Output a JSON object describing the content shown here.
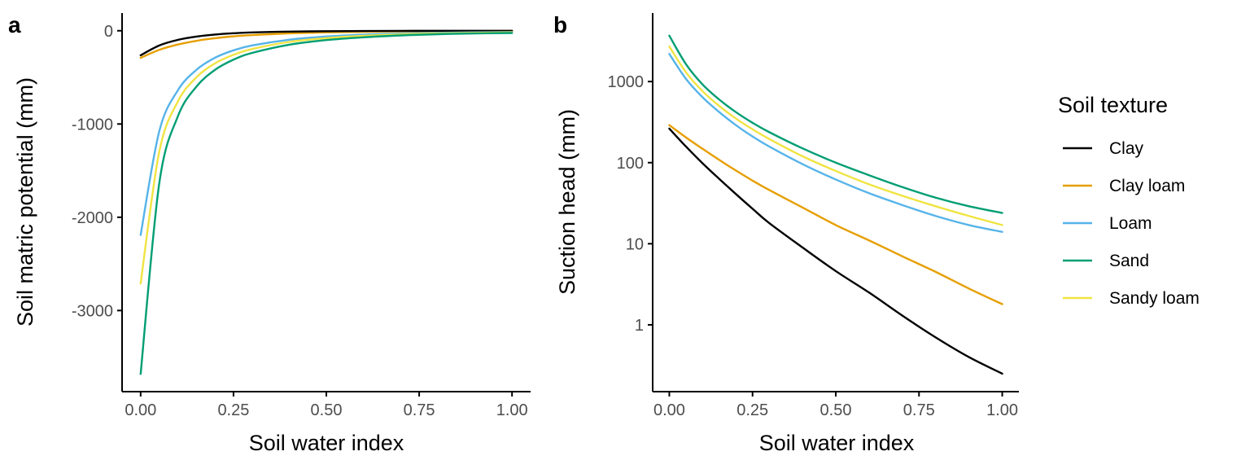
{
  "chart_data": [
    {
      "panel": "a",
      "type": "line",
      "xlabel": "Soil water index",
      "ylabel": "Soil matric potential (mm)",
      "xlim": [
        -0.05,
        1.05
      ],
      "ylim": [
        -3870,
        190
      ],
      "x_ticks": [
        0,
        0.25,
        0.5,
        0.75,
        1
      ],
      "x_tick_labels": [
        "0.00",
        "0.25",
        "0.50",
        "0.75",
        "1.00"
      ],
      "y_ticks": [
        0,
        -1000,
        -2000,
        -3000
      ],
      "y_tick_labels": [
        "0",
        "-1000",
        "-2000",
        "-3000"
      ],
      "x": [
        0,
        0.05,
        0.1,
        0.15,
        0.2,
        0.25,
        0.3,
        0.4,
        0.5,
        0.6,
        0.7,
        0.8,
        0.9,
        1.0
      ],
      "series": [
        {
          "name": "Clay",
          "color": "#000000",
          "values": [
            -263,
            -158,
            -98,
            -63,
            -41,
            -27,
            -18,
            -9,
            -4.6,
            -2.5,
            -1.3,
            -0.7,
            -0.4,
            -0.2
          ]
        },
        {
          "name": "Clay loam",
          "color": "#E69F00",
          "values": [
            -290,
            -205,
            -148,
            -108,
            -80,
            -60,
            -46,
            -28,
            -17,
            -11,
            -7,
            -4.5,
            -2.8,
            -1.8
          ]
        },
        {
          "name": "Loam",
          "color": "#56B4E9",
          "values": [
            -2190,
            -1080,
            -640,
            -420,
            -290,
            -210,
            -158,
            -96,
            -62,
            -42,
            -30,
            -22,
            -17,
            -14
          ]
        },
        {
          "name": "Sand",
          "color": "#009E73",
          "values": [
            -3680,
            -1640,
            -920,
            -600,
            -420,
            -310,
            -238,
            -150,
            -100,
            -70,
            -50,
            -37,
            -29,
            -24
          ]
        },
        {
          "name": "Sandy loam",
          "color": "#F0E442",
          "values": [
            -2710,
            -1300,
            -760,
            -500,
            -350,
            -258,
            -196,
            -120,
            -79,
            -54,
            -39,
            -29,
            -22,
            -17
          ]
        }
      ]
    },
    {
      "panel": "b",
      "type": "line",
      "xlabel": "Soil water index",
      "ylabel": "Suction head (mm)",
      "y_scale": "log10",
      "xlim": [
        -0.05,
        1.05
      ],
      "ylim": [
        0.15,
        7000
      ],
      "x_ticks": [
        0,
        0.25,
        0.5,
        0.75,
        1
      ],
      "x_tick_labels": [
        "0.00",
        "0.25",
        "0.50",
        "0.75",
        "1.00"
      ],
      "y_ticks": [
        1,
        10,
        100,
        1000
      ],
      "y_tick_labels": [
        "1",
        "10",
        "100",
        "1000"
      ],
      "x": [
        0,
        0.05,
        0.1,
        0.15,
        0.2,
        0.25,
        0.3,
        0.4,
        0.5,
        0.6,
        0.7,
        0.8,
        0.9,
        1.0
      ],
      "series": [
        {
          "name": "Clay",
          "color": "#000000",
          "values": [
            263,
            158,
            98,
            63,
            41,
            27,
            18,
            9,
            4.6,
            2.5,
            1.3,
            0.7,
            0.4,
            0.25
          ]
        },
        {
          "name": "Clay loam",
          "color": "#E69F00",
          "values": [
            290,
            205,
            148,
            108,
            80,
            60,
            46,
            28,
            17,
            11,
            7,
            4.5,
            2.8,
            1.8
          ]
        },
        {
          "name": "Loam",
          "color": "#56B4E9",
          "values": [
            2190,
            1080,
            640,
            420,
            290,
            210,
            158,
            96,
            62,
            42,
            30,
            22,
            17,
            14
          ]
        },
        {
          "name": "Sand",
          "color": "#009E73",
          "values": [
            3680,
            1640,
            920,
            600,
            420,
            310,
            238,
            150,
            100,
            70,
            50,
            37,
            29,
            24
          ]
        },
        {
          "name": "Sandy loam",
          "color": "#F0E442",
          "values": [
            2710,
            1300,
            760,
            500,
            350,
            258,
            196,
            120,
            79,
            54,
            39,
            29,
            22,
            17
          ]
        }
      ]
    }
  ],
  "legend": {
    "title": "Soil texture",
    "placement": "right",
    "items": [
      {
        "label": "Clay",
        "color": "#000000"
      },
      {
        "label": "Clay loam",
        "color": "#E69F00"
      },
      {
        "label": "Loam",
        "color": "#56B4E9"
      },
      {
        "label": "Sand",
        "color": "#009E73"
      },
      {
        "label": "Sandy loam",
        "color": "#F0E442"
      }
    ]
  }
}
